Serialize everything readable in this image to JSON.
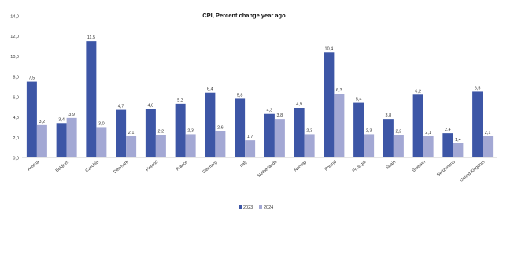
{
  "chart_data": {
    "type": "bar",
    "title": "CPI, Percent change year ago",
    "xlabel": "",
    "ylabel": "",
    "ylim": [
      0,
      14
    ],
    "yticks": [
      "0,0",
      "2,0",
      "4,0",
      "6,0",
      "8,0",
      "10,0",
      "12,0",
      "14,0"
    ],
    "grid": false,
    "legend_position": "bottom",
    "categories": [
      "Austria",
      "Belgium",
      "Czechia",
      "Denmark",
      "Finland",
      "France",
      "Germany",
      "Italy",
      "Netherlands",
      "Norway",
      "Poland",
      "Portugal",
      "Spain",
      "Sweden",
      "Switzerland",
      "United Kingdom"
    ],
    "series": [
      {
        "name": "2023",
        "color": "#3d56a6",
        "values": [
          7.5,
          3.4,
          11.5,
          4.7,
          4.8,
          5.3,
          6.4,
          5.8,
          4.3,
          4.9,
          10.4,
          5.4,
          3.8,
          6.2,
          2.4,
          6.5
        ],
        "labels": [
          "7,5",
          "3,4",
          "11,5",
          "4,7",
          "4,8",
          "5,3",
          "6,4",
          "5,8",
          "4,3",
          "4,9",
          "10,4",
          "5,4",
          "3,8",
          "6,2",
          "2,4",
          "6,5"
        ]
      },
      {
        "name": "2024",
        "color": "#a3a8d4",
        "values": [
          3.2,
          3.9,
          3.0,
          2.1,
          2.2,
          2.3,
          2.6,
          1.7,
          3.8,
          2.3,
          6.3,
          2.3,
          2.2,
          2.1,
          1.4,
          2.1
        ],
        "labels": [
          "3,2",
          "3,9",
          "3,0",
          "2,1",
          "2,2",
          "2,3",
          "2,6",
          "1,7",
          "3,8",
          "2,3",
          "6,3",
          "2,3",
          "2,2",
          "2,1",
          "1,4",
          "2,1"
        ]
      }
    ]
  }
}
